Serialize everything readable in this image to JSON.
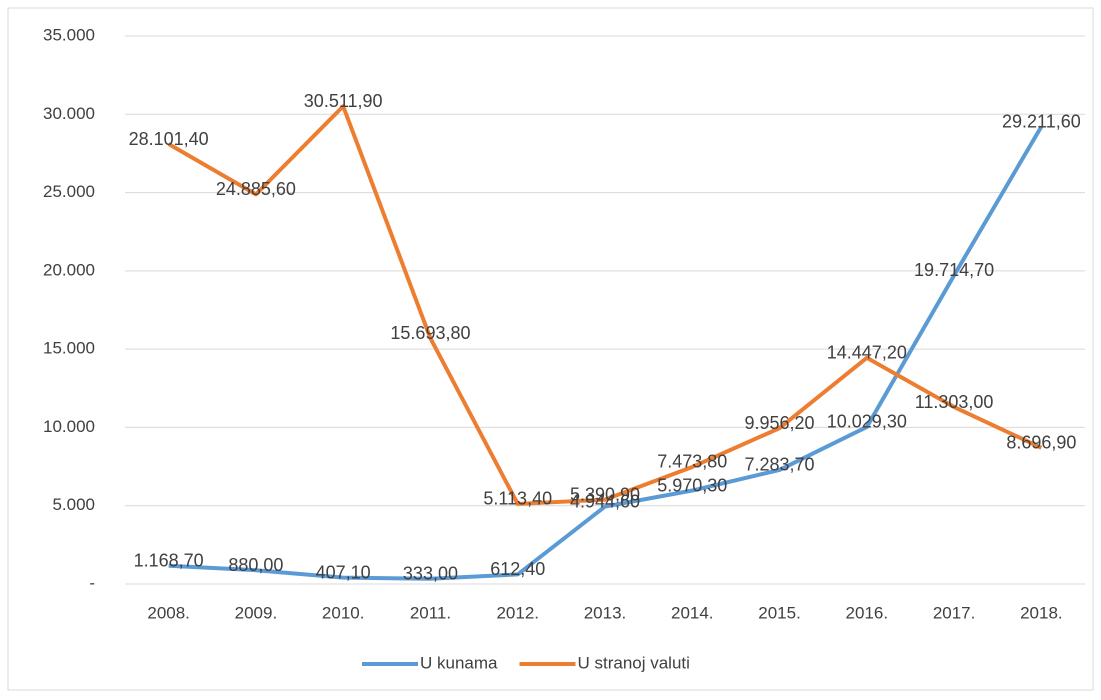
{
  "chart_data": {
    "type": "line",
    "categories": [
      "2008.",
      "2009.",
      "2010.",
      "2011.",
      "2012.",
      "2013.",
      "2014.",
      "2015.",
      "2016.",
      "2017.",
      "2018."
    ],
    "series": [
      {
        "name": "U kunama",
        "color": "#5b9bd5",
        "values": [
          1168.7,
          880,
          407.1,
          333,
          612.4,
          4944.6,
          5970.3,
          7283.7,
          10029.3,
          19714.7,
          29211.6
        ],
        "value_labels": [
          "1.168,70",
          "880,00",
          "407,10",
          "333,00",
          "612,40",
          "4.944,60",
          "5.970,30",
          "7.283,70",
          "10.029,30",
          "19.714,70",
          "29.211,60"
        ]
      },
      {
        "name": "U stranoj valuti",
        "color": "#ed7d31",
        "values": [
          28101.4,
          24885.6,
          30511.9,
          15693.8,
          5113.4,
          5390.9,
          7473.8,
          9956.2,
          14447.2,
          11303,
          8696.9
        ],
        "value_labels": [
          "28.101,40",
          "24.885,60",
          "30.511,90",
          "15.693,80",
          "5.113,40",
          "5.390,90",
          "7.473,80",
          "9.956,20",
          "14.447,20",
          "11.303,00",
          "8.696,90"
        ]
      }
    ],
    "ylim": [
      0,
      35000
    ],
    "yticks": [
      {
        "value": 0,
        "label": "-"
      },
      {
        "value": 5000,
        "label": "5.000"
      },
      {
        "value": 10000,
        "label": "10.000"
      },
      {
        "value": 15000,
        "label": "15.000"
      },
      {
        "value": 20000,
        "label": "20.000"
      },
      {
        "value": 25000,
        "label": "25.000"
      },
      {
        "value": 30000,
        "label": "30.000"
      },
      {
        "value": 35000,
        "label": "35.000"
      }
    ],
    "grid": true,
    "legend": "bottom"
  }
}
